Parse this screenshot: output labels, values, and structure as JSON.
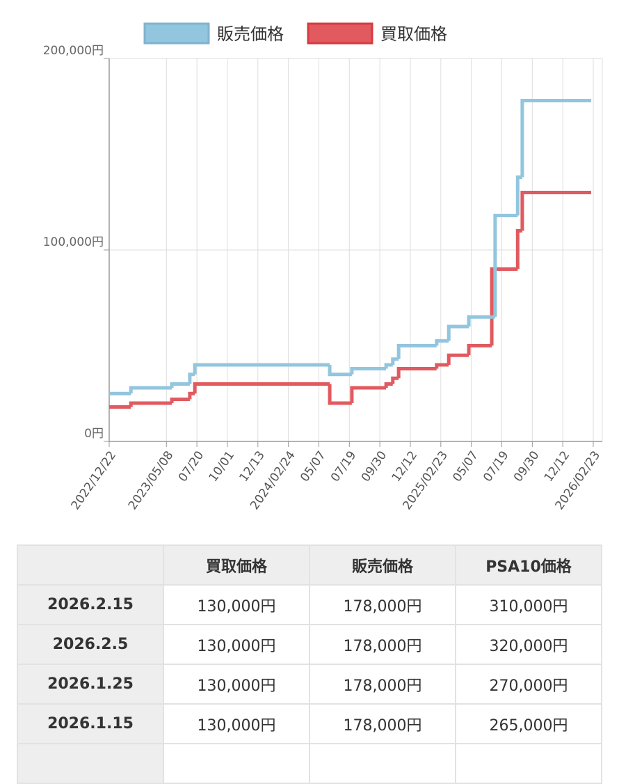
{
  "chart_data": {
    "type": "step",
    "x": [
      0,
      52,
      150,
      193,
      205,
      528,
      581,
      663,
      679,
      693,
      784,
      813,
      861,
      916,
      924,
      978,
      989,
      1154
    ],
    "series": [
      {
        "name": "販売価格",
        "color": "#92c5de",
        "border": "#7fb3cf",
        "values": [
          25000,
          28000,
          30000,
          35000,
          40000,
          35000,
          38000,
          40000,
          43000,
          50000,
          52500,
          60000,
          65000,
          65000,
          118000,
          138000,
          178000,
          178000
        ]
      },
      {
        "name": "買取価格",
        "color": "#e05a5f",
        "border": "#d83a3f",
        "values": [
          18000,
          20000,
          22000,
          25000,
          30000,
          20000,
          28000,
          30000,
          33000,
          38000,
          40000,
          45000,
          50000,
          90000,
          90000,
          110000,
          130000,
          130000
        ]
      }
    ],
    "xlim": [
      0,
      1159
    ],
    "xticks": [
      {
        "value": 0,
        "label": "2022/12/22"
      },
      {
        "value": 137,
        "label": "2023/05/08"
      },
      {
        "value": 210,
        "label": "07/20"
      },
      {
        "value": 283,
        "label": "10/01"
      },
      {
        "value": 356,
        "label": "12/13"
      },
      {
        "value": 429,
        "label": "2024/02/24"
      },
      {
        "value": 502,
        "label": "05/07"
      },
      {
        "value": 575,
        "label": "07/19"
      },
      {
        "value": 648,
        "label": "09/30"
      },
      {
        "value": 721,
        "label": "12/12"
      },
      {
        "value": 794,
        "label": "2025/02/23"
      },
      {
        "value": 867,
        "label": "05/07"
      },
      {
        "value": 940,
        "label": "07/19"
      },
      {
        "value": 1013,
        "label": "09/30"
      },
      {
        "value": 1086,
        "label": "12/12"
      },
      {
        "value": 1159,
        "label": "2026/02/23"
      }
    ],
    "ylim": [
      0,
      200000
    ],
    "yticks": [
      {
        "value": 0,
        "label": "0円"
      },
      {
        "value": 100000,
        "label": "100,000円"
      },
      {
        "value": 200000,
        "label": "200,000円"
      }
    ],
    "grid": true,
    "legend": "top"
  },
  "table": {
    "header": [
      "買取価格",
      "販売価格",
      "PSA10価格"
    ],
    "rows": [
      [
        "2026.2.15",
        "130,000円",
        "178,000円",
        "310,000円"
      ],
      [
        "2026.2.5",
        "130,000円",
        "178,000円",
        "320,000円"
      ],
      [
        "2026.1.25",
        "130,000円",
        "178,000円",
        "270,000円"
      ],
      [
        "2026.1.15",
        "130,000円",
        "178,000円",
        "265,000円"
      ]
    ]
  }
}
